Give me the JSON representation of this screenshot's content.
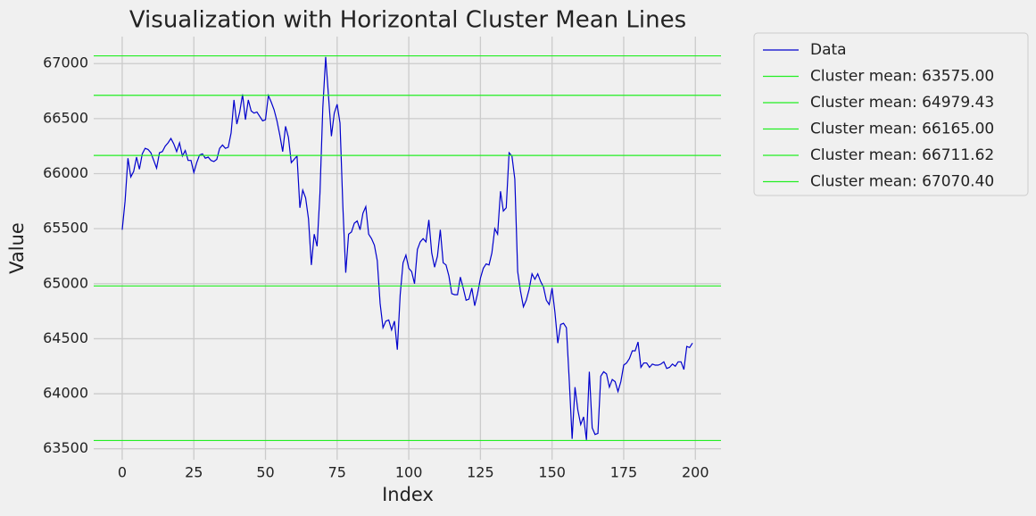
{
  "chart_data": {
    "type": "line",
    "title": "Visualization with Horizontal Cluster Mean Lines",
    "xlabel": "Index",
    "ylabel": "Value",
    "x": [
      0,
      1,
      2,
      3,
      4,
      5,
      6,
      7,
      8,
      9,
      10,
      11,
      12,
      13,
      14,
      15,
      16,
      17,
      18,
      19,
      20,
      21,
      22,
      23,
      24,
      25,
      26,
      27,
      28,
      29,
      30,
      31,
      32,
      33,
      34,
      35,
      36,
      37,
      38,
      39,
      40,
      41,
      42,
      43,
      44,
      45,
      46,
      47,
      48,
      49,
      50,
      51,
      52,
      53,
      54,
      55,
      56,
      57,
      58,
      59,
      60,
      61,
      62,
      63,
      64,
      65,
      66,
      67,
      68,
      69,
      70,
      71,
      72,
      73,
      74,
      75,
      76,
      77,
      78,
      79,
      80,
      81,
      82,
      83,
      84,
      85,
      86,
      87,
      88,
      89,
      90,
      91,
      92,
      93,
      94,
      95,
      96,
      97,
      98,
      99,
      100,
      101,
      102,
      103,
      104,
      105,
      106,
      107,
      108,
      109,
      110,
      111,
      112,
      113,
      114,
      115,
      116,
      117,
      118,
      119,
      120,
      121,
      122,
      123,
      124,
      125,
      126,
      127,
      128,
      129,
      130,
      131,
      132,
      133,
      134,
      135,
      136,
      137,
      138,
      139,
      140,
      141,
      142,
      143,
      144,
      145,
      146,
      147,
      148,
      149,
      150,
      151,
      152,
      153,
      154,
      155,
      156,
      157,
      158,
      159,
      160,
      161,
      162,
      163,
      164,
      165,
      166,
      167,
      168,
      169,
      170,
      171,
      172,
      173,
      174,
      175,
      176,
      177,
      178,
      179,
      180,
      181,
      182,
      183,
      184,
      185,
      186,
      187,
      188,
      189,
      190,
      191,
      192,
      193,
      194,
      195,
      196,
      197,
      198,
      199
    ],
    "series": [
      {
        "name": "Data",
        "color": "#0000cc",
        "values": [
          65490,
          65750,
          66140,
          65970,
          66020,
          66150,
          66040,
          66180,
          66230,
          66220,
          66190,
          66120,
          66050,
          66190,
          66200,
          66250,
          66280,
          66320,
          66270,
          66200,
          66280,
          66160,
          66210,
          66120,
          66120,
          66010,
          66100,
          66170,
          66180,
          66140,
          66150,
          66120,
          66110,
          66130,
          66230,
          66260,
          66230,
          66240,
          66370,
          66670,
          66450,
          66560,
          66720,
          66490,
          66670,
          66570,
          66550,
          66560,
          66520,
          66480,
          66490,
          66710,
          66650,
          66580,
          66480,
          66350,
          66200,
          66430,
          66330,
          66100,
          66130,
          66160,
          65690,
          65850,
          65780,
          65590,
          65170,
          65450,
          65340,
          65820,
          66600,
          67060,
          66700,
          66340,
          66550,
          66630,
          66460,
          65700,
          65100,
          65450,
          65470,
          65550,
          65570,
          65490,
          65640,
          65700,
          65450,
          65410,
          65350,
          65210,
          64820,
          64600,
          64660,
          64670,
          64580,
          64660,
          64400,
          64900,
          65190,
          65260,
          65140,
          65110,
          65000,
          65310,
          65380,
          65410,
          65380,
          65580,
          65280,
          65150,
          65250,
          65490,
          65190,
          65170,
          65070,
          64910,
          64900,
          64900,
          65060,
          64960,
          64850,
          64860,
          64960,
          64800,
          64910,
          65050,
          65140,
          65180,
          65170,
          65280,
          65500,
          65450,
          65840,
          65660,
          65690,
          66190,
          66160,
          65950,
          65110,
          64930,
          64790,
          64850,
          64950,
          65090,
          65040,
          65090,
          65020,
          64970,
          64850,
          64810,
          64960,
          64740,
          64460,
          64630,
          64640,
          64600,
          64120,
          63590,
          64060,
          63850,
          63720,
          63790,
          63580,
          64200,
          63690,
          63630,
          63640,
          64160,
          64200,
          64180,
          64060,
          64130,
          64110,
          64020,
          64110,
          64260,
          64280,
          64320,
          64390,
          64390,
          64470,
          64240,
          64280,
          64280,
          64240,
          64270,
          64260,
          64260,
          64270,
          64290,
          64230,
          64240,
          64270,
          64250,
          64290,
          64290,
          64220,
          64430,
          64420,
          64460
        ]
      }
    ],
    "hlines": [
      {
        "name": "Cluster mean: 63575.00",
        "value": 63575.0,
        "color": "#22ee22"
      },
      {
        "name": "Cluster mean: 64979.43",
        "value": 64979.43,
        "color": "#22ee22"
      },
      {
        "name": "Cluster mean: 66165.00",
        "value": 66165.0,
        "color": "#22ee22"
      },
      {
        "name": "Cluster mean: 66711.62",
        "value": 66711.62,
        "color": "#22ee22"
      },
      {
        "name": "Cluster mean: 67070.40",
        "value": 67070.4,
        "color": "#22ee22"
      }
    ],
    "xlim": [
      -9.95,
      208.95
    ],
    "ylim": [
      63400.23,
      67245.17
    ],
    "xticks": [
      0,
      25,
      50,
      75,
      100,
      125,
      150,
      175,
      200
    ],
    "yticks": [
      63500,
      64000,
      64500,
      65000,
      65500,
      66000,
      66500,
      67000
    ],
    "grid": true,
    "legend": "outside-upper-right"
  }
}
